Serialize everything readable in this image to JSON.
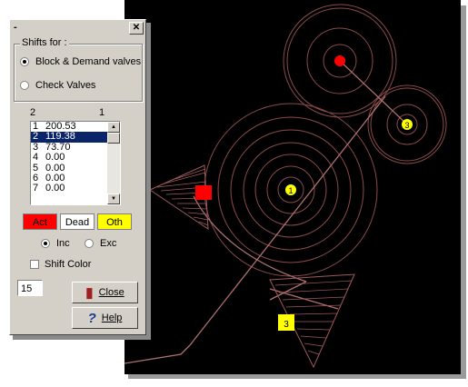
{
  "window": {
    "title": "-",
    "close_glyph": "✕"
  },
  "shifts_group": {
    "label": "Shifts for :",
    "options": [
      {
        "label": "Block & Demand valves",
        "selected": true
      },
      {
        "label": "Check Valves",
        "selected": false
      }
    ]
  },
  "list": {
    "header_left": "2",
    "header_right": "1",
    "rows": [
      {
        "n": "1",
        "v": "200.53"
      },
      {
        "n": "2",
        "v": "119.38"
      },
      {
        "n": "3",
        "v": "73.70"
      },
      {
        "n": "4",
        "v": "0.00"
      },
      {
        "n": "5",
        "v": "0.00"
      },
      {
        "n": "6",
        "v": "0.00"
      },
      {
        "n": "7",
        "v": "0.00"
      }
    ],
    "selected_index": 1
  },
  "legend": {
    "act": "Act",
    "dead": "Dead",
    "oth": "Oth",
    "act_color": "#ff0000",
    "dead_color": "#ffffff",
    "oth_color": "#ffff00"
  },
  "mode": {
    "inc": "Inc",
    "exc": "Exc",
    "selected": "Inc"
  },
  "shift_color": {
    "label": "Shift Color",
    "checked": false
  },
  "value_field": "15",
  "buttons": {
    "close": "Close",
    "help": "Help"
  },
  "canvas": {
    "markers": {
      "node_1": "1",
      "node_3a": "3",
      "node_3b": "3",
      "node_red": ""
    },
    "colors": {
      "background": "#000000",
      "lines": "#b07070",
      "circles": "#9a5a5a",
      "red": "#ff0000",
      "yellow": "#ffff00"
    }
  }
}
